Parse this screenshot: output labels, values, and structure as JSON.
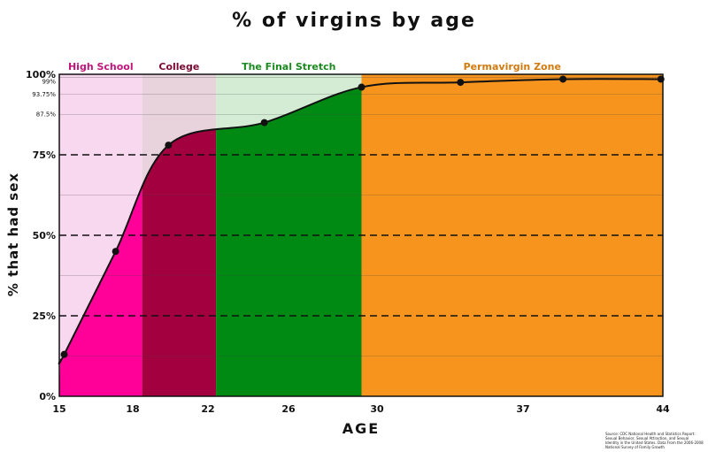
{
  "chart_data": {
    "type": "area",
    "title": "% of virgins by age",
    "xlabel": "AGE",
    "ylabel": "% that had sex",
    "xlim": [
      15,
      44
    ],
    "ylim": [
      0,
      100
    ],
    "x_ticks": [
      "15",
      "18",
      "22",
      "26",
      "30",
      "37",
      "44"
    ],
    "y_ticks": [
      {
        "value": 0,
        "label": "0%"
      },
      {
        "value": 25,
        "label": "25%"
      },
      {
        "value": 50,
        "label": "50%"
      },
      {
        "value": 75,
        "label": "75%"
      },
      {
        "value": 87.5,
        "label": "87.5%"
      },
      {
        "value": 93.75,
        "label": "93.75%"
      },
      {
        "value": 99,
        "label": "99%"
      },
      {
        "value": 100,
        "label": "100%"
      }
    ],
    "series": [
      {
        "points": [
          {
            "x": 15.2,
            "y": 13
          },
          {
            "x": 17.3,
            "y": 45
          },
          {
            "x": 19.9,
            "y": 78
          },
          {
            "x": 24.8,
            "y": 85
          },
          {
            "x": 29.3,
            "y": 96
          },
          {
            "x": 34.0,
            "y": 97.5
          },
          {
            "x": 39.0,
            "y": 98.5
          },
          {
            "x": 43.9,
            "y": 98.5
          }
        ]
      }
    ],
    "zones": [
      {
        "label": "High School",
        "x_start": 15,
        "x_end": 18.5,
        "fill": "#ff0099",
        "tint": "#f8d8ee",
        "label_color": "#c0157a"
      },
      {
        "label": "College",
        "x_start": 18.5,
        "x_end": 22.4,
        "fill": "#a3003f",
        "tint": "#e8d3dc",
        "label_color": "#7a0a33"
      },
      {
        "label": "The Final Stretch",
        "x_start": 22.4,
        "x_end": 29.3,
        "fill": "#008a14",
        "tint": "#d4ecd4",
        "label_color": "#1a8a1f"
      },
      {
        "label": "Permavirgin Zone",
        "x_start": 29.3,
        "x_end": 44,
        "fill": "#f7941d",
        "tint": "#f7941d",
        "label_color": "#d07a10"
      }
    ],
    "grid": true,
    "source_note": [
      "Source: CDC National Health and Statistics Report:",
      "Sexual Behavior, Sexual Attraction, and Sexual",
      "Identity in the United States. Data From the 2006-2008",
      "National Survey of Family Growth"
    ]
  }
}
